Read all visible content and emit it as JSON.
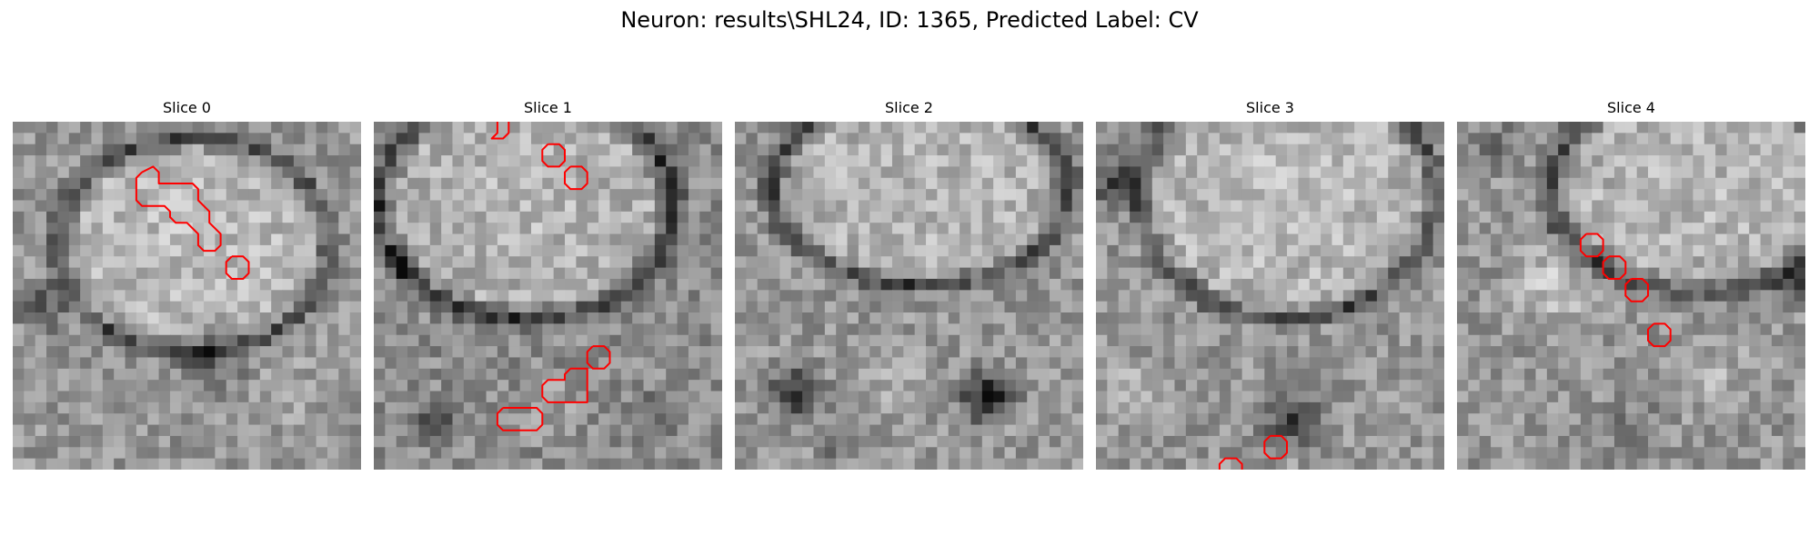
{
  "figure": {
    "title": "Neuron: results\\SHL24, ID: 1365, Predicted Label: CV",
    "overlay_color": "#ff0000",
    "panels": [
      {
        "title": "Slice 0"
      },
      {
        "title": "Slice 1"
      },
      {
        "title": "Slice 2"
      },
      {
        "title": "Slice 3"
      },
      {
        "title": "Slice 4"
      }
    ]
  }
}
